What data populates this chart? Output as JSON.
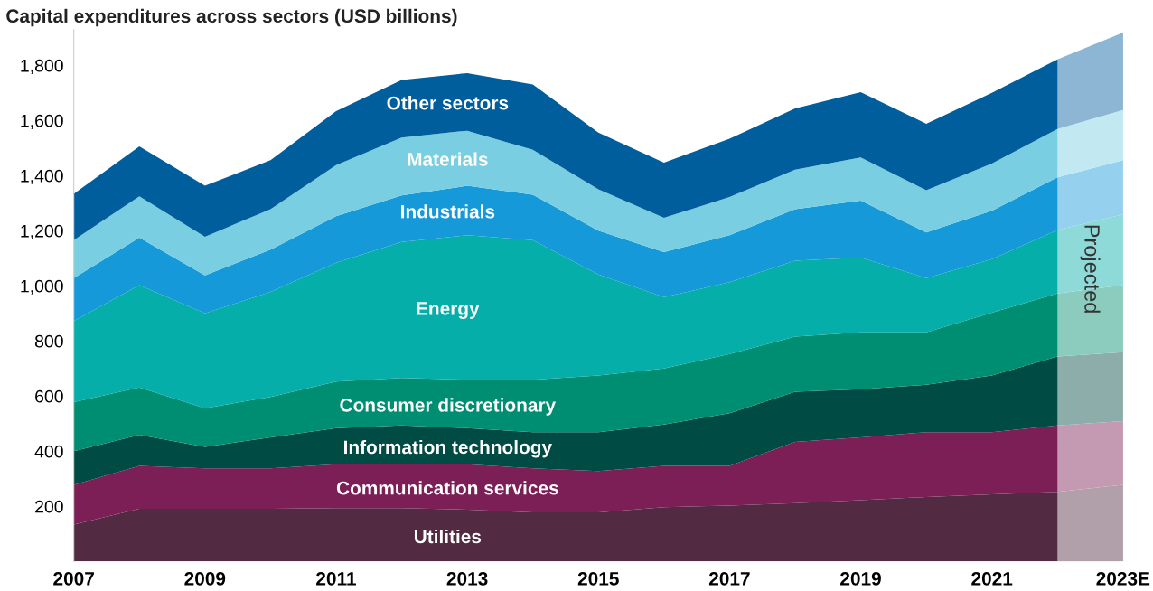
{
  "chart_data": {
    "type": "area",
    "stacked": true,
    "title": "Capital expenditures across sectors (USD billions)",
    "x": [
      2007,
      2008,
      2009,
      2010,
      2011,
      2012,
      2013,
      2014,
      2015,
      2016,
      2017,
      2018,
      2019,
      2020,
      2021,
      2022,
      2023
    ],
    "series": [
      {
        "name": "Utilities",
        "color": "#522a42",
        "values": [
          134,
          191,
          191,
          191,
          194,
          194,
          188,
          178,
          178,
          197,
          203,
          212,
          222,
          234,
          244,
          253,
          278
        ]
      },
      {
        "name": "Communication services",
        "color": "#7b1f56",
        "values": [
          144,
          156,
          147,
          147,
          159,
          159,
          165,
          160,
          150,
          150,
          144,
          222,
          228,
          235,
          225,
          241,
          231
        ]
      },
      {
        "name": "Information technology",
        "color": "#004b44",
        "values": [
          122,
          112,
          78,
          112,
          131,
          141,
          131,
          131,
          141,
          150,
          191,
          182,
          175,
          172,
          206,
          250,
          250
        ]
      },
      {
        "name": "Consumer discretionary",
        "color": "#008e72",
        "values": [
          178,
          172,
          140,
          147,
          169,
          172,
          175,
          190,
          206,
          203,
          215,
          200,
          206,
          190,
          228,
          228,
          244
        ]
      },
      {
        "name": "Energy",
        "color": "#05aea8",
        "values": [
          294,
          372,
          344,
          381,
          431,
          493,
          525,
          507,
          366,
          259,
          260,
          275,
          272,
          197,
          194,
          231,
          256
        ]
      },
      {
        "name": "Industrials",
        "color": "#1599d9",
        "values": [
          156,
          172,
          138,
          153,
          169,
          169,
          179,
          165,
          159,
          163,
          171,
          187,
          206,
          166,
          175,
          191,
          197
        ]
      },
      {
        "name": "Materials",
        "color": "#79cfe1",
        "values": [
          138,
          150,
          140,
          147,
          185,
          210,
          200,
          163,
          150,
          125,
          138,
          144,
          157,
          153,
          172,
          175,
          182
        ]
      },
      {
        "name": "Other sectors",
        "color": "#005e9d",
        "values": [
          168,
          181,
          185,
          178,
          196,
          209,
          209,
          237,
          206,
          200,
          212,
          222,
          237,
          241,
          256,
          253,
          281
        ]
      }
    ],
    "xlim": [
      2007,
      2023
    ],
    "xticks": [
      2007,
      2009,
      2011,
      2013,
      2015,
      2017,
      2019,
      2021,
      {
        "value": 2023,
        "label": "2023E"
      }
    ],
    "ylim": [
      0,
      1930
    ],
    "yticks": [
      200,
      400,
      600,
      800,
      {
        "value": 1000,
        "label": "1,000"
      },
      {
        "value": 1200,
        "label": "1,200"
      },
      {
        "value": 1400,
        "label": "1,400"
      },
      {
        "value": 1600,
        "label": "1,600"
      },
      {
        "value": 1800,
        "label": "1,800"
      }
    ],
    "bands": [
      {
        "axis": "x",
        "from": 2022,
        "to": 2023,
        "label": "Projected",
        "color": "#ffffff"
      }
    ],
    "grid": false,
    "legend": false
  }
}
